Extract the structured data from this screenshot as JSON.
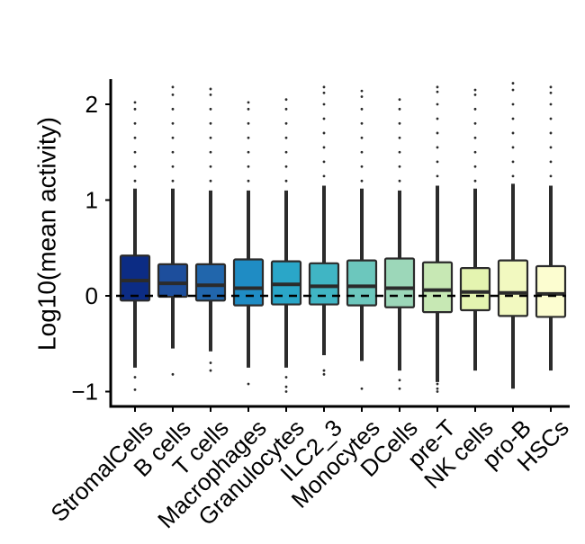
{
  "chart_data": {
    "type": "box",
    "title": "",
    "xlabel": "",
    "ylabel": "Log10(mean activity)",
    "ylim": [
      -1.2,
      2.3
    ],
    "yticks": [
      -1,
      0,
      1,
      2
    ],
    "ytick_labels": [
      "−1",
      "0",
      "1",
      "2"
    ],
    "reference_line": {
      "y": 0,
      "style": "dashed"
    },
    "categories": [
      "StromalCells",
      "B cells",
      "T cells",
      "Macrophages",
      "Granulocytes",
      "ILC2_3",
      "Monocytes",
      "DCells",
      "pre-T",
      "NK cells",
      "pro-B",
      "HSCs"
    ],
    "colors": [
      "#0c2c84",
      "#1d4e9c",
      "#2166ac",
      "#1f8cc4",
      "#2aa6c8",
      "#40b5c4",
      "#6cc7bd",
      "#9cd7b9",
      "#c7e8b4",
      "#e4f4b0",
      "#f2f9c0",
      "#fcfdd0"
    ],
    "boxes": [
      {
        "q1": -0.05,
        "median": 0.16,
        "q3": 0.42,
        "whisker_low": -0.75,
        "whisker_high": 1.12,
        "outliers": [
          -0.85,
          -0.98,
          1.2,
          1.35,
          1.5,
          1.65,
          1.8,
          1.95,
          2.02
        ]
      },
      {
        "q1": -0.01,
        "median": 0.13,
        "q3": 0.33,
        "whisker_low": -0.55,
        "whisker_high": 1.12,
        "outliers": [
          -0.82,
          1.2,
          1.35,
          1.5,
          1.65,
          1.8,
          1.95,
          2.1,
          2.18
        ]
      },
      {
        "q1": -0.05,
        "median": 0.11,
        "q3": 0.33,
        "whisker_low": -0.58,
        "whisker_high": 1.1,
        "outliers": [
          -0.7,
          -0.78,
          1.2,
          1.35,
          1.5,
          1.65,
          1.8,
          1.95,
          2.1,
          2.16
        ]
      },
      {
        "q1": -0.1,
        "median": 0.08,
        "q3": 0.38,
        "whisker_low": -0.75,
        "whisker_high": 1.1,
        "outliers": [
          -0.92,
          1.2,
          1.35,
          1.5,
          1.65,
          1.8,
          1.95,
          2.02
        ]
      },
      {
        "q1": -0.09,
        "median": 0.12,
        "q3": 0.36,
        "whisker_low": -0.75,
        "whisker_high": 1.1,
        "outliers": [
          -0.85,
          -0.95,
          -1.0,
          1.2,
          1.35,
          1.5,
          1.65,
          1.8,
          1.95,
          2.05
        ]
      },
      {
        "q1": -0.09,
        "median": 0.1,
        "q3": 0.34,
        "whisker_low": -0.62,
        "whisker_high": 1.15,
        "outliers": [
          -0.78,
          -0.82,
          1.25,
          1.4,
          1.55,
          1.7,
          1.85,
          2.0,
          2.12,
          2.18
        ]
      },
      {
        "q1": -0.1,
        "median": 0.1,
        "q3": 0.37,
        "whisker_low": -0.68,
        "whisker_high": 1.12,
        "outliers": [
          -0.97,
          1.2,
          1.35,
          1.5,
          1.65,
          1.8,
          1.95,
          2.08,
          2.14
        ]
      },
      {
        "q1": -0.12,
        "median": 0.08,
        "q3": 0.39,
        "whisker_low": -0.78,
        "whisker_high": 1.1,
        "outliers": [
          -0.88,
          -0.97,
          1.2,
          1.35,
          1.5,
          1.65,
          1.8,
          1.95,
          2.05
        ]
      },
      {
        "q1": -0.17,
        "median": 0.06,
        "q3": 0.35,
        "whisker_low": -0.9,
        "whisker_high": 1.15,
        "outliers": [
          -0.92,
          -0.97,
          -1.0,
          1.25,
          1.4,
          1.55,
          1.7,
          1.85,
          2.0,
          2.13,
          2.18
        ]
      },
      {
        "q1": -0.15,
        "median": 0.04,
        "q3": 0.29,
        "whisker_low": -0.78,
        "whisker_high": 1.12,
        "outliers": [
          1.2,
          1.35,
          1.5,
          1.65,
          1.8,
          1.95,
          2.1,
          2.15
        ]
      },
      {
        "q1": -0.21,
        "median": 0.03,
        "q3": 0.37,
        "whisker_low": -0.97,
        "whisker_high": 1.17,
        "outliers": [
          1.25,
          1.4,
          1.55,
          1.7,
          1.85,
          2.0,
          2.15,
          2.22
        ]
      },
      {
        "q1": -0.22,
        "median": 0.02,
        "q3": 0.31,
        "whisker_low": -0.78,
        "whisker_high": 1.15,
        "outliers": [
          1.25,
          1.4,
          1.55,
          1.7,
          1.85,
          2.0,
          2.12,
          2.18
        ]
      }
    ]
  }
}
